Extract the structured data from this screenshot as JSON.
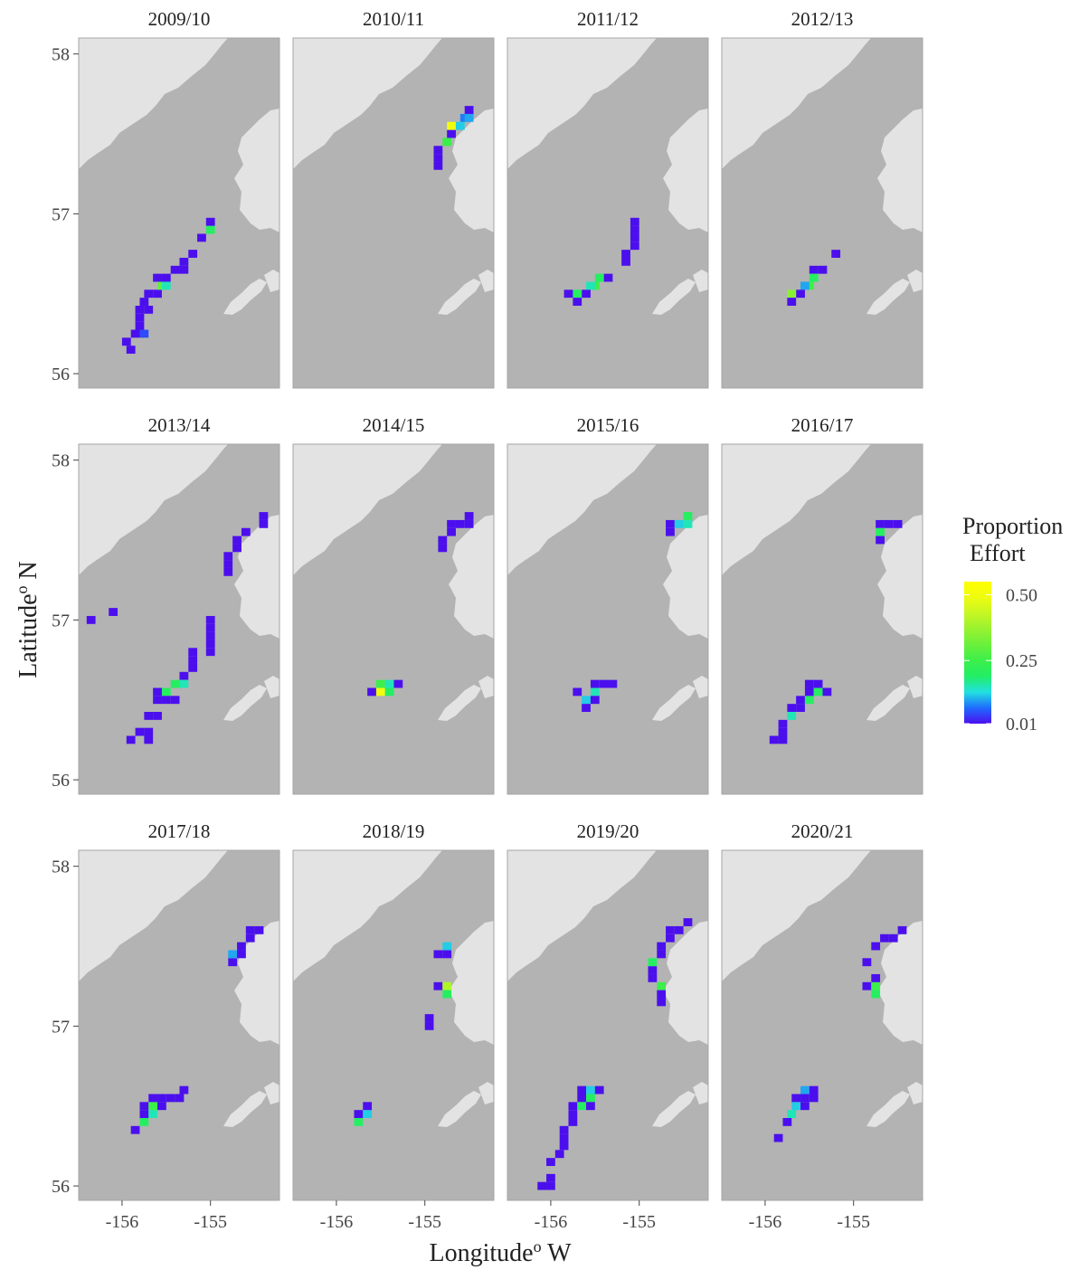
{
  "chart_data": {
    "type": "tile",
    "x_label": {
      "main": "Longitude",
      "superscript": "o",
      "unit": "W"
    },
    "y_label": {
      "main": "Latitude",
      "superscript": "o",
      "unit": "N"
    },
    "xlim": [
      -156.49,
      -154.22
    ],
    "xticks": [
      -156,
      -155
    ],
    "ylim": [
      55.91,
      58.1
    ],
    "yticks": [
      56,
      57,
      58
    ],
    "tile_width": 0.1,
    "tile_height": 0.05,
    "legend_title": [
      "Proportion",
      "Effort"
    ],
    "fill_lim": [
      0.01,
      0.55
    ],
    "legend_ticks": [
      0.01,
      0.25,
      {
        "value": 0.5,
        "label": "0.50"
      }
    ],
    "colors": [
      "#4b0fee",
      "#1f6bff",
      "#22e0e0",
      "#22ee66",
      "#3cef4a",
      "#6af03c",
      "#98f230",
      "#c6f724",
      "#eefc10",
      "#ffff00"
    ],
    "water_color": "#b3b3b3",
    "land_color": "#e3e3e3",
    "facets": [
      {
        "title": "2009/10",
        "lon": [
          -155.95,
          -155.9,
          -155.85,
          -155.8,
          -155.75,
          -155.8,
          -155.7,
          -155.8,
          -155.7,
          -155.6,
          -155.55,
          -155.5,
          -155.5,
          -155.4,
          -155.3,
          -155.3,
          -155.2,
          -155.1,
          -155.0,
          -155.0,
          -155.6,
          -155.75
        ],
        "lat": [
          56.2,
          56.15,
          56.25,
          56.3,
          56.25,
          56.35,
          56.4,
          56.4,
          56.5,
          56.5,
          56.55,
          56.55,
          56.6,
          56.65,
          56.7,
          56.65,
          56.75,
          56.85,
          56.9,
          56.95,
          56.6,
          56.45
        ],
        "values": [
          0.01,
          0.01,
          0.01,
          0.01,
          0.05,
          0.01,
          0.01,
          0.01,
          0.01,
          0.01,
          0.3,
          0.15,
          0.01,
          0.01,
          0.01,
          0.01,
          0.01,
          0.01,
          0.2,
          0.01,
          0.01,
          0.01
        ]
      },
      {
        "title": "2010/11",
        "lon": [
          -154.85,
          -154.85,
          -154.85,
          -154.75,
          -154.7,
          -154.7,
          -154.6,
          -154.55,
          -154.5,
          -154.5
        ],
        "lat": [
          57.3,
          57.35,
          57.4,
          57.45,
          57.5,
          57.55,
          57.55,
          57.6,
          57.6,
          57.65
        ],
        "values": [
          0.01,
          0.01,
          0.01,
          0.25,
          0.01,
          0.5,
          0.12,
          0.08,
          0.1,
          0.01
        ]
      },
      {
        "title": "2011/12",
        "lon": [
          -155.05,
          -155.05,
          -155.05,
          -155.05,
          -155.15,
          -155.15,
          -155.35,
          -155.45,
          -155.5,
          -155.55,
          -155.6,
          -155.7,
          -155.8,
          -155.7
        ],
        "lat": [
          56.95,
          56.9,
          56.85,
          56.8,
          56.75,
          56.7,
          56.6,
          56.6,
          56.55,
          56.55,
          56.5,
          56.5,
          56.5,
          56.45
        ],
        "values": [
          0.01,
          0.01,
          0.01,
          0.01,
          0.01,
          0.01,
          0.01,
          0.2,
          0.25,
          0.15,
          0.01,
          0.2,
          0.01,
          0.01
        ]
      },
      {
        "title": "2012/13",
        "lon": [
          -155.2,
          -155.35,
          -155.45,
          -155.45,
          -155.5,
          -155.55,
          -155.6,
          -155.7,
          -155.7
        ],
        "lat": [
          56.75,
          56.65,
          56.65,
          56.6,
          56.55,
          56.55,
          56.5,
          56.5,
          56.45
        ],
        "values": [
          0.01,
          0.01,
          0.01,
          0.2,
          0.25,
          0.1,
          0.01,
          0.35,
          0.01
        ]
      },
      {
        "title": "2013/14",
        "lon": [
          -156.35,
          -156.1,
          -154.4,
          -154.4,
          -154.6,
          -154.7,
          -154.7,
          -154.8,
          -154.8,
          -154.8,
          -155.0,
          -155.0,
          -155.0,
          -155.0,
          -155.0,
          -155.2,
          -155.2,
          -155.2,
          -155.3,
          -155.3,
          -155.4,
          -155.5,
          -155.6,
          -155.6,
          -155.5,
          -155.4,
          -155.6,
          -155.7,
          -155.7,
          -155.8,
          -155.7,
          -155.9
        ],
        "lat": [
          57.0,
          57.05,
          57.65,
          57.6,
          57.55,
          57.5,
          57.45,
          57.4,
          57.35,
          57.3,
          57.0,
          56.95,
          56.9,
          56.85,
          56.8,
          56.8,
          56.75,
          56.7,
          56.65,
          56.6,
          56.6,
          56.55,
          56.55,
          56.5,
          56.5,
          56.5,
          56.4,
          56.4,
          56.3,
          56.3,
          56.25,
          56.25
        ],
        "values": [
          0.01,
          0.01,
          0.01,
          0.01,
          0.01,
          0.01,
          0.01,
          0.01,
          0.01,
          0.01,
          0.01,
          0.01,
          0.01,
          0.01,
          0.01,
          0.01,
          0.01,
          0.01,
          0.01,
          0.15,
          0.2,
          0.2,
          0.01,
          0.01,
          0.01,
          0.01,
          0.01,
          0.01,
          0.01,
          0.01,
          0.01,
          0.01
        ]
      },
      {
        "title": "2014/15",
        "lon": [
          -155.6,
          -155.5,
          -155.5,
          -155.4,
          -155.4,
          -155.3,
          -154.8,
          -154.8,
          -154.7,
          -154.7,
          -154.6,
          -154.5,
          -154.5
        ],
        "lat": [
          56.55,
          56.6,
          56.55,
          56.6,
          56.55,
          56.6,
          57.5,
          57.45,
          57.55,
          57.6,
          57.6,
          57.6,
          57.65
        ],
        "values": [
          0.01,
          0.25,
          0.5,
          0.15,
          0.2,
          0.01,
          0.01,
          0.01,
          0.01,
          0.01,
          0.01,
          0.01,
          0.01
        ]
      },
      {
        "title": "2015/16",
        "lon": [
          -155.6,
          -155.6,
          -155.5,
          -155.5,
          -155.4,
          -155.5,
          -155.3,
          -155.7,
          -154.65,
          -154.65,
          -154.55,
          -154.45,
          -154.45
        ],
        "lat": [
          56.5,
          56.45,
          56.6,
          56.55,
          56.6,
          56.5,
          56.6,
          56.55,
          57.6,
          57.55,
          57.6,
          57.65,
          57.6
        ],
        "values": [
          0.12,
          0.01,
          0.01,
          0.15,
          0.01,
          0.01,
          0.01,
          0.01,
          0.01,
          0.01,
          0.12,
          0.2,
          0.15
        ]
      },
      {
        "title": "2016/17",
        "lon": [
          -154.7,
          -154.6,
          -154.5,
          -154.7,
          -154.7,
          -155.9,
          -155.8,
          -155.8,
          -155.8,
          -155.7,
          -155.7,
          -155.6,
          -155.6,
          -155.5,
          -155.5,
          -155.4,
          -155.4,
          -155.5,
          -155.3
        ],
        "lat": [
          57.6,
          57.6,
          57.6,
          57.55,
          57.5,
          56.25,
          56.25,
          56.3,
          56.35,
          56.4,
          56.45,
          56.45,
          56.5,
          56.5,
          56.55,
          56.55,
          56.6,
          56.6,
          56.55
        ],
        "values": [
          0.01,
          0.01,
          0.01,
          0.2,
          0.01,
          0.01,
          0.01,
          0.01,
          0.01,
          0.15,
          0.01,
          0.01,
          0.01,
          0.2,
          0.01,
          0.2,
          0.01,
          0.01,
          0.01
        ]
      },
      {
        "title": "2017/18",
        "lon": [
          -155.85,
          -155.75,
          -155.75,
          -155.75,
          -155.65,
          -155.65,
          -155.65,
          -155.55,
          -155.45,
          -155.35,
          -155.3,
          -155.55,
          -154.75,
          -154.75,
          -154.65,
          -154.65,
          -154.55,
          -154.45,
          -154.55
        ],
        "lat": [
          56.35,
          56.4,
          56.45,
          56.5,
          56.45,
          56.5,
          56.55,
          56.55,
          56.55,
          56.55,
          56.6,
          56.5,
          57.4,
          57.45,
          57.45,
          57.5,
          57.55,
          57.6,
          57.6
        ],
        "values": [
          0.01,
          0.2,
          0.01,
          0.01,
          0.15,
          0.25,
          0.01,
          0.01,
          0.01,
          0.01,
          0.01,
          0.01,
          0.01,
          0.1,
          0.01,
          0.01,
          0.01,
          0.01,
          0.01
        ]
      },
      {
        "title": "2018/19",
        "lon": [
          -155.75,
          -155.75,
          -155.65,
          -155.65,
          -154.95,
          -154.95,
          -154.85,
          -154.75,
          -154.75,
          -154.85,
          -154.75,
          -154.75
        ],
        "lat": [
          56.45,
          56.4,
          56.45,
          56.5,
          57.05,
          57.0,
          57.45,
          57.45,
          57.5,
          57.25,
          57.25,
          57.2
        ],
        "values": [
          0.01,
          0.2,
          0.12,
          0.01,
          0.01,
          0.01,
          0.01,
          0.01,
          0.12,
          0.01,
          0.4,
          0.2
        ]
      },
      {
        "title": "2019/20",
        "lon": [
          -156.1,
          -156.0,
          -156.0,
          -156.0,
          -155.9,
          -155.85,
          -155.85,
          -155.85,
          -155.75,
          -155.75,
          -155.75,
          -155.65,
          -155.65,
          -155.65,
          -155.55,
          -155.55,
          -155.45,
          -155.55,
          -154.85,
          -154.85,
          -154.85,
          -154.75,
          -154.75,
          -154.75,
          -154.75,
          -154.75,
          -154.65,
          -154.65,
          -154.55,
          -154.45
        ],
        "lat": [
          56.0,
          56.0,
          56.05,
          56.15,
          56.2,
          56.25,
          56.3,
          56.35,
          56.4,
          56.45,
          56.5,
          56.5,
          56.55,
          56.6,
          56.55,
          56.6,
          56.6,
          56.5,
          57.3,
          57.35,
          57.4,
          57.25,
          57.2,
          57.15,
          57.45,
          57.5,
          57.55,
          57.6,
          57.6,
          57.65
        ],
        "values": [
          0.01,
          0.01,
          0.01,
          0.01,
          0.01,
          0.01,
          0.01,
          0.01,
          0.01,
          0.01,
          0.01,
          0.2,
          0.01,
          0.01,
          0.2,
          0.12,
          0.01,
          0.01,
          0.01,
          0.01,
          0.2,
          0.25,
          0.01,
          0.01,
          0.01,
          0.01,
          0.01,
          0.01,
          0.01,
          0.01
        ]
      },
      {
        "title": "2020/21",
        "lon": [
          -155.85,
          -155.75,
          -155.7,
          -155.65,
          -155.65,
          -155.55,
          -155.55,
          -155.45,
          -155.45,
          -155.55,
          -154.85,
          -154.75,
          -154.65,
          -154.55,
          -154.45,
          -154.85,
          -154.75,
          -154.75,
          -154.75
        ],
        "lat": [
          56.3,
          56.4,
          56.45,
          56.5,
          56.55,
          56.55,
          56.6,
          56.6,
          56.55,
          56.5,
          57.4,
          57.5,
          57.55,
          57.55,
          57.6,
          57.25,
          57.25,
          57.2,
          57.3
        ],
        "values": [
          0.01,
          0.01,
          0.15,
          0.12,
          0.01,
          0.01,
          0.1,
          0.01,
          0.01,
          0.01,
          0.01,
          0.01,
          0.01,
          0.01,
          0.01,
          0.01,
          0.25,
          0.2,
          0.01
        ]
      }
    ]
  }
}
